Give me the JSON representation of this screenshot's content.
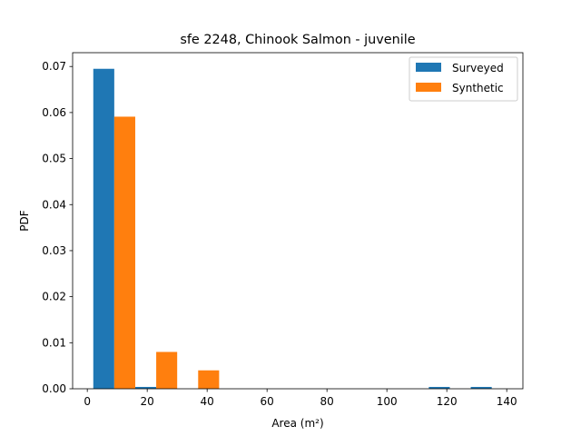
{
  "chart_data": {
    "type": "bar",
    "title": "sfe 2248, Chinook Salmon - juvenile",
    "xlabel": "Area (m²)",
    "ylabel": "PDF",
    "xlim": [
      -4.9,
      145.4
    ],
    "ylim": [
      0,
      0.073
    ],
    "xticks": [
      0,
      20,
      40,
      60,
      80,
      100,
      120,
      140
    ],
    "yticks": [
      0.0,
      0.01,
      0.02,
      0.03,
      0.04,
      0.05,
      0.06,
      0.07
    ],
    "ytick_labels": [
      "0.00",
      "0.01",
      "0.02",
      "0.03",
      "0.04",
      "0.05",
      "0.06",
      "0.07"
    ],
    "bin_edges": [
      2,
      16,
      30,
      44,
      58,
      72,
      86,
      100,
      114,
      128,
      142
    ],
    "legend_position": "top-right",
    "grid": false,
    "series": [
      {
        "name": "Surveyed",
        "color": "#1f77b4",
        "values": [
          0.0695,
          0.0004,
          0,
          0,
          0,
          0,
          0,
          0,
          0.0004,
          0.0004
        ]
      },
      {
        "name": "Synthetic",
        "color": "#ff7f0e",
        "values": [
          0.0591,
          0.008,
          0.004,
          0,
          0,
          0,
          0,
          0,
          0,
          0
        ]
      }
    ]
  }
}
